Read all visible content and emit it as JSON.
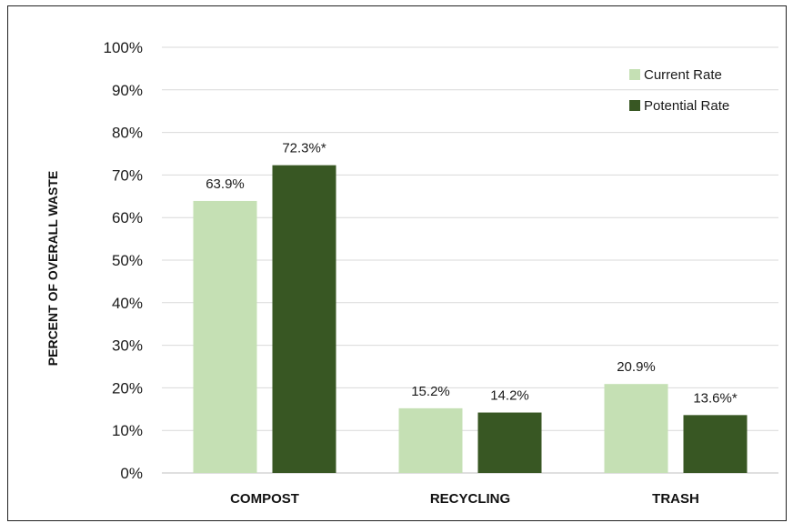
{
  "chart_data": {
    "type": "bar",
    "title": "",
    "xlabel": "",
    "ylabel": "PERCENT OF OVERALL WASTE",
    "categories": [
      "COMPOST",
      "RECYCLING",
      "TRASH"
    ],
    "ylim": [
      0,
      100
    ],
    "yticks": [
      "0%",
      "10%",
      "20%",
      "30%",
      "40%",
      "50%",
      "60%",
      "70%",
      "80%",
      "90%",
      "100%"
    ],
    "grid": true,
    "legend_position": "top-right",
    "series": [
      {
        "name": "Current Rate",
        "color": "#c5e0b4",
        "values": [
          63.9,
          15.2,
          20.9
        ],
        "labels": [
          "63.9%",
          "15.2%",
          "20.9%"
        ]
      },
      {
        "name": "Potential Rate",
        "color": "#385723",
        "values": [
          72.3,
          14.2,
          13.6
        ],
        "labels": [
          "72.3%*",
          "14.2%",
          "13.6%*"
        ]
      }
    ]
  }
}
